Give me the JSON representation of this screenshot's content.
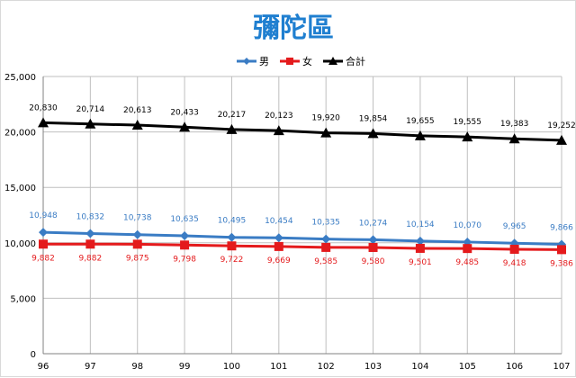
{
  "chart_data": {
    "type": "line",
    "title": "彌陀區",
    "xlabel": "",
    "ylabel": "",
    "categories": [
      "96",
      "97",
      "98",
      "99",
      "100",
      "101",
      "102",
      "103",
      "104",
      "105",
      "106",
      "107"
    ],
    "ylim": [
      0,
      25000
    ],
    "yticks": [
      0,
      5000,
      10000,
      15000,
      20000,
      25000
    ],
    "ytick_labels": [
      "0",
      "5,000",
      "10,000",
      "15,000",
      "20,000",
      "25,000"
    ],
    "grid": true,
    "legend_position": "top-center",
    "series": [
      {
        "name": "男",
        "color": "#3a7cc4",
        "marker": "diamond",
        "values": [
          10948,
          10832,
          10738,
          10635,
          10495,
          10454,
          10335,
          10274,
          10154,
          10070,
          9965,
          9866
        ],
        "labels": [
          "10,948",
          "10,832",
          "10,738",
          "10,635",
          "10,495",
          "10,454",
          "10,335",
          "10,274",
          "10,154",
          "10,070",
          "9,965",
          "9,866"
        ]
      },
      {
        "name": "女",
        "color": "#e41a1c",
        "marker": "square",
        "values": [
          9882,
          9882,
          9875,
          9798,
          9722,
          9669,
          9585,
          9580,
          9501,
          9485,
          9418,
          9386
        ],
        "labels": [
          "9,882",
          "9,882",
          "9,875",
          "9,798",
          "9,722",
          "9,669",
          "9,585",
          "9,580",
          "9,501",
          "9,485",
          "9,418",
          "9,386"
        ]
      },
      {
        "name": "合計",
        "color": "#000000",
        "marker": "triangle",
        "values": [
          20830,
          20714,
          20613,
          20433,
          20217,
          20123,
          19920,
          19854,
          19655,
          19555,
          19383,
          19252
        ],
        "labels": [
          "20,830",
          "20,714",
          "20,613",
          "20,433",
          "20,217",
          "20,123",
          "19,920",
          "19,854",
          "19,655",
          "19,555",
          "19,383",
          "19,252"
        ]
      }
    ]
  }
}
